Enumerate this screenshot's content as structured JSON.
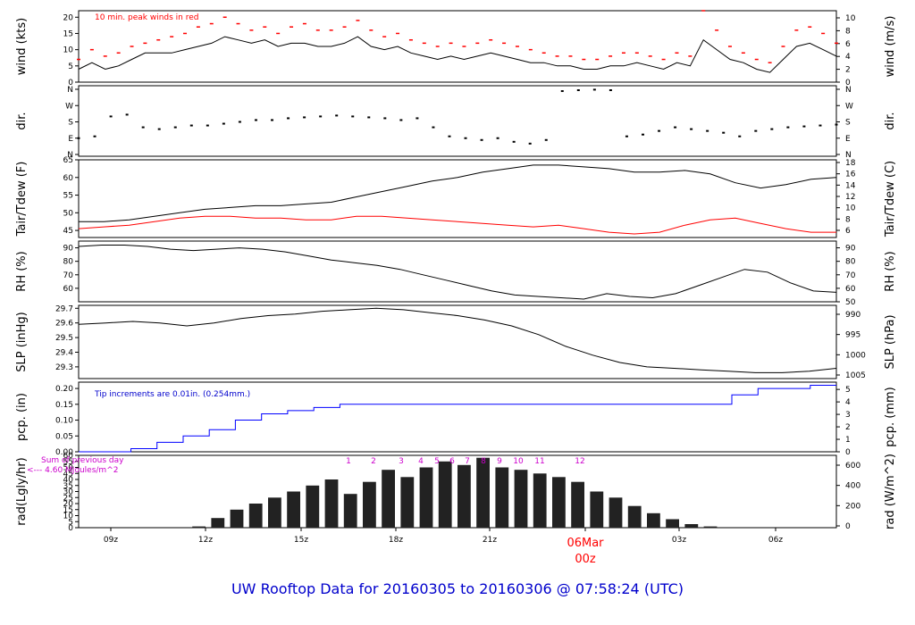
{
  "footer": {
    "title": "UW Rooftop Data for 20160305  to  20160306 @ 07:58:24  (UTC)"
  },
  "colors": {
    "line": "#000000",
    "peak": "#ff0000",
    "dewpoint": "#ff0000",
    "precip": "#0000ff",
    "annotation": "#cc00cc",
    "title": "#0000cc",
    "date_label": "#ff0000"
  },
  "x_axis": {
    "labels": [
      "09z",
      "12z",
      "15z",
      "18z",
      "21z",
      "06Mar",
      "03z",
      "06z"
    ],
    "sub_label": "00z"
  },
  "chart_data": [
    {
      "type": "line",
      "id": "wind",
      "ylabel": "wind (kts)",
      "ylabel_right": "wind (m/s)",
      "ylim": [
        0,
        22
      ],
      "yticks": [
        "0",
        "5",
        "10",
        "15",
        "20"
      ],
      "yticks_right": [
        "0",
        "2",
        "4",
        "6",
        "8",
        "10"
      ],
      "annotation": "10 min. peak winds in red",
      "series": [
        {
          "values": [
            4,
            6,
            4,
            5,
            7,
            9,
            9,
            9,
            10,
            11,
            12,
            14,
            13,
            12,
            13,
            11,
            12,
            12,
            11,
            11,
            12,
            14,
            11,
            10,
            11,
            9,
            8,
            7,
            8,
            7,
            8,
            9,
            8,
            7,
            6,
            6,
            5,
            5,
            4,
            4,
            5,
            5,
            6,
            5,
            4,
            6,
            5,
            13,
            10,
            7,
            6,
            4,
            3,
            7,
            11,
            12,
            10,
            8
          ]
        },
        {
          "values": [
            7,
            10,
            8,
            9,
            11,
            12,
            13,
            14,
            15,
            17,
            18,
            20,
            18,
            16,
            17,
            15,
            17,
            18,
            16,
            16,
            17,
            19,
            16,
            14,
            15,
            13,
            12,
            11,
            12,
            11,
            12,
            13,
            12,
            11,
            10,
            9,
            8,
            8,
            7,
            7,
            8,
            9,
            9,
            8,
            7,
            9,
            8,
            22,
            16,
            11,
            9,
            7,
            6,
            11,
            16,
            17,
            15,
            12
          ]
        }
      ]
    },
    {
      "type": "scatter",
      "id": "dir",
      "ylabel": "dir.",
      "ylabel_right": "dir.",
      "yticks": [
        "N",
        "E",
        "S",
        "W",
        "N"
      ],
      "values": [
        90,
        100,
        210,
        220,
        150,
        140,
        150,
        160,
        160,
        170,
        180,
        190,
        190,
        200,
        205,
        210,
        215,
        210,
        205,
        200,
        190,
        200,
        150,
        100,
        90,
        80,
        90,
        70,
        60,
        80,
        350,
        355,
        358,
        355,
        100,
        110,
        130,
        150,
        140,
        130,
        120,
        100,
        130,
        140,
        150,
        155,
        160,
        165
      ]
    },
    {
      "type": "line",
      "id": "temp",
      "ylabel": "Tair/Tdew (F)",
      "ylabel_right": "Tair/Tdew (C)",
      "ylim": [
        43,
        65
      ],
      "yticks": [
        "45",
        "50",
        "55",
        "60",
        "65"
      ],
      "yticks_right": [
        "6",
        "8",
        "10",
        "12",
        "14",
        "16",
        "18"
      ],
      "series": [
        {
          "values": [
            47.5,
            47.5,
            48,
            49,
            50,
            51,
            51.5,
            52,
            52,
            52.5,
            53,
            54.5,
            56,
            57.5,
            59,
            60,
            61.5,
            62.5,
            63.5,
            63.5,
            63,
            62.5,
            61.5,
            61.5,
            62,
            61,
            58.5,
            57,
            58,
            59.5,
            60
          ]
        },
        {
          "values": [
            45.5,
            46,
            46.5,
            47.5,
            48.5,
            49,
            49,
            48.5,
            48.5,
            48,
            48,
            49,
            49,
            48.5,
            48,
            47.5,
            47,
            46.5,
            46,
            46.5,
            45.5,
            44.5,
            44,
            44.5,
            46.5,
            48,
            48.5,
            47,
            45.5,
            44.5,
            44.5
          ]
        }
      ]
    },
    {
      "type": "line",
      "id": "rh",
      "ylabel": "RH (%)",
      "ylabel_right": "RH (%)",
      "ylim": [
        50,
        95
      ],
      "yticks": [
        "60",
        "70",
        "80",
        "90"
      ],
      "yticks_right": [
        "50",
        "60",
        "70",
        "80",
        "90"
      ],
      "values": [
        91,
        92,
        92,
        91,
        89,
        88,
        89,
        90,
        89,
        87,
        84,
        81,
        79,
        77,
        74,
        70,
        66,
        62,
        58,
        55,
        54,
        53,
        52,
        56,
        54,
        53,
        56,
        62,
        68,
        74,
        72,
        64,
        58,
        57
      ]
    },
    {
      "type": "line",
      "id": "slp",
      "ylabel": "SLP (inHg)",
      "ylabel_right": "SLP (hPa)",
      "ylim": [
        29.22,
        29.72
      ],
      "yticks": [
        "29.3",
        "29.4",
        "29.5",
        "29.6",
        "29.7"
      ],
      "yticks_right": [
        "990",
        "995",
        "1000",
        "1005"
      ],
      "values": [
        29.59,
        29.6,
        29.61,
        29.6,
        29.58,
        29.6,
        29.63,
        29.65,
        29.66,
        29.68,
        29.69,
        29.7,
        29.69,
        29.67,
        29.65,
        29.62,
        29.58,
        29.52,
        29.44,
        29.38,
        29.33,
        29.3,
        29.29,
        29.28,
        29.27,
        29.26,
        29.26,
        29.27,
        29.29
      ]
    },
    {
      "type": "line",
      "id": "pcp",
      "ylabel": "pcp. (in)",
      "ylabel_right": "pcp. (mm)",
      "ylim": [
        0,
        0.22
      ],
      "yticks": [
        "0.00",
        "0.05",
        "0.10",
        "0.15",
        "0.20"
      ],
      "yticks_right": [
        "0",
        "1",
        "2",
        "3",
        "4",
        "5"
      ],
      "annotation": "Tip increments are 0.01in. (0.254mm.)",
      "values": [
        0,
        0,
        0.01,
        0.03,
        0.05,
        0.07,
        0.1,
        0.12,
        0.13,
        0.14,
        0.15,
        0.15,
        0.15,
        0.15,
        0.15,
        0.15,
        0.15,
        0.15,
        0.15,
        0.15,
        0.15,
        0.15,
        0.15,
        0.15,
        0.15,
        0.18,
        0.2,
        0.2,
        0.21,
        0.21
      ]
    },
    {
      "type": "area",
      "id": "rad",
      "ylabel": "rad(Lgly/hr)",
      "ylabel_right": "rad (W/m^2)",
      "ylim": [
        0,
        60
      ],
      "yticks": [
        "0",
        "5",
        "10",
        "15",
        "20",
        "25",
        "30",
        "35",
        "40",
        "45",
        "50",
        "55",
        "60"
      ],
      "yticks_right": [
        "0",
        "200",
        "400",
        "600"
      ],
      "annotation_lines": [
        "Sum of previous day",
        "<--- 4.60 MJoules/m^2"
      ],
      "hour_labels": [
        "1",
        "2",
        "3",
        "4",
        "5",
        "6",
        "7",
        "8",
        "9",
        "10",
        "11",
        "12"
      ],
      "values": [
        0,
        0,
        0,
        0,
        0,
        0,
        1,
        8,
        15,
        20,
        25,
        30,
        35,
        40,
        28,
        38,
        48,
        42,
        50,
        55,
        52,
        58,
        50,
        48,
        45,
        42,
        38,
        30,
        25,
        18,
        12,
        7,
        3,
        1,
        0,
        0,
        0,
        0,
        0,
        0
      ]
    }
  ]
}
